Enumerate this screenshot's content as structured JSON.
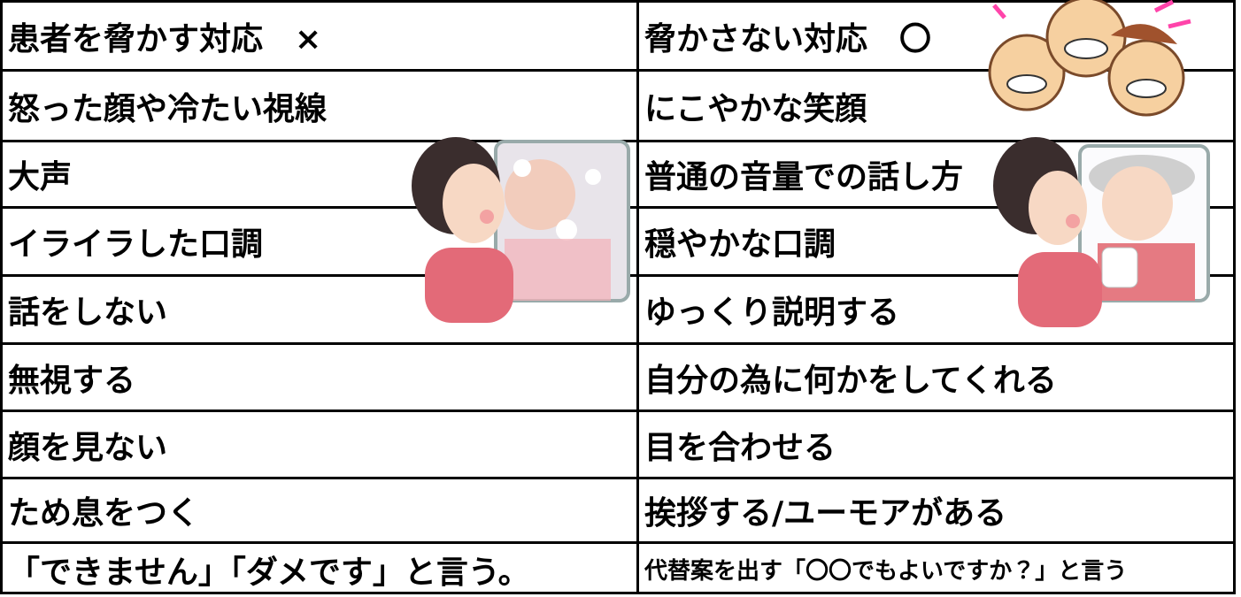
{
  "table": {
    "header": [
      "患者を脅かす対応　×",
      "脅かさない対応　〇"
    ],
    "rows": [
      [
        "怒った顔や冷たい視線",
        "にこやかな笑顔"
      ],
      [
        "大声",
        "普通の音量での話し方"
      ],
      [
        "イライラした口調",
        "穏やかな口調"
      ],
      [
        "話をしない",
        "ゆっくり説明する"
      ],
      [
        "無視する",
        "自分の為に何かをしてくれる"
      ],
      [
        "顔を見ない",
        "目を合わせる"
      ],
      [
        "ため息をつく",
        "挨拶する/ユーモアがある"
      ],
      [
        "「できません」「ダメです」と言う。",
        "代替案を出す「〇〇でもよいですか？」と言う"
      ]
    ]
  }
}
